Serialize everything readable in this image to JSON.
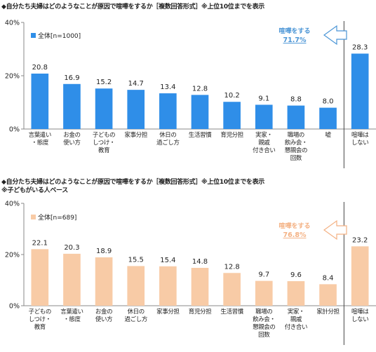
{
  "colors": {
    "series_a": "#2f8ee8",
    "series_b": "#f8cba6",
    "callout_a": "#4a95d6",
    "callout_b": "#f4b183",
    "axis": "#888888",
    "divider": "#444444"
  },
  "chart_data": [
    {
      "type": "bar",
      "title": "◆自分たち夫婦はどのようなことが原因で喧嘩をするか［複数回答形式］※上位10位までを表示",
      "subtitle": "",
      "legend": "全体[n=1000]",
      "legend_position": "top-left",
      "y_ticks": [
        "40%",
        "20%",
        "0%"
      ],
      "ylim": [
        0,
        40
      ],
      "categories": [
        "言葉遣い\n・態度",
        "お金の\n使い方",
        "子どもの\nしつけ・\n教育",
        "家事分担",
        "休日の\n過ごし方",
        "生活習慣",
        "育児分担",
        "実家・\n親戚\n付き合い",
        "職場の\n飲み会・\n懇親会の\n回数",
        "嘘",
        "喧嘩は\nしない"
      ],
      "values": [
        20.8,
        16.9,
        15.2,
        14.7,
        13.4,
        12.8,
        10.2,
        9.1,
        8.8,
        8.0,
        28.3
      ],
      "value_labels": [
        "20.8",
        "16.9",
        "15.2",
        "14.7",
        "13.4",
        "12.8",
        "10.2",
        "9.1",
        "8.8",
        "8.0",
        "28.3"
      ],
      "callout": {
        "line1": "喧嘩をする",
        "line2": "71.7%"
      },
      "grid": false
    },
    {
      "type": "bar",
      "title": "◆自分たち夫婦はどのようなことが原因で喧嘩をするか［複数回答形式］※上位10位までを表示",
      "subtitle": "※子どもがいる人ベース",
      "legend": "全体[n=689]",
      "legend_position": "top-left",
      "y_ticks": [
        "40%",
        "20%",
        "0%"
      ],
      "ylim": [
        0,
        40
      ],
      "categories": [
        "子どもの\nしつけ・\n教育",
        "言葉遣い\n・態度",
        "お金の\n使い方",
        "休日の\n過ごし方",
        "家事分担",
        "育児分担",
        "生活習慣",
        "職場の\n飲み会・\n懇親会の\n回数",
        "実家・\n親戚\n付き合い",
        "家計分担",
        "喧嘩は\nしない"
      ],
      "values": [
        22.1,
        20.3,
        18.9,
        15.5,
        15.4,
        14.8,
        12.8,
        9.7,
        9.6,
        8.4,
        23.2
      ],
      "value_labels": [
        "22.1",
        "20.3",
        "18.9",
        "15.5",
        "15.4",
        "14.8",
        "12.8",
        "9.7",
        "9.6",
        "8.4",
        "23.2"
      ],
      "callout": {
        "line1": "喧嘩をする",
        "line2": "76.8%"
      },
      "grid": false
    }
  ]
}
